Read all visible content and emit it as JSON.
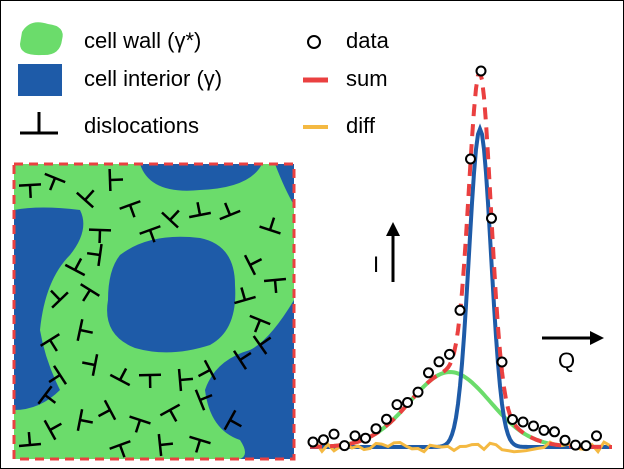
{
  "legend": {
    "cell_wall": "cell wall (γ*)",
    "cell_interior": "cell interior (γ)",
    "dislocations": "dislocations",
    "data": "data",
    "sum": "sum",
    "diff": "diff"
  },
  "axes": {
    "intensity": "I",
    "q": "Q"
  }
}
